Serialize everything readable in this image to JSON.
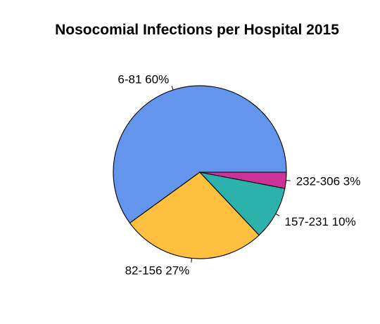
{
  "chart_data": {
    "type": "pie",
    "title": "Nosocomial Infections per Hospital 2015",
    "slices": [
      {
        "category": "6-81",
        "percent": 60,
        "label": "6-81 60%",
        "color": "#6495ED"
      },
      {
        "category": "82-156",
        "percent": 27,
        "label": "82-156 27%",
        "color": "#FFBF3F"
      },
      {
        "category": "157-231",
        "percent": 10,
        "label": "157-231 10%",
        "color": "#2CB2AA"
      },
      {
        "category": "232-306",
        "percent": 3,
        "label": "232-306 3%",
        "color": "#CC3399"
      }
    ],
    "start_angle_deg": 0,
    "direction": "counterclockwise"
  }
}
